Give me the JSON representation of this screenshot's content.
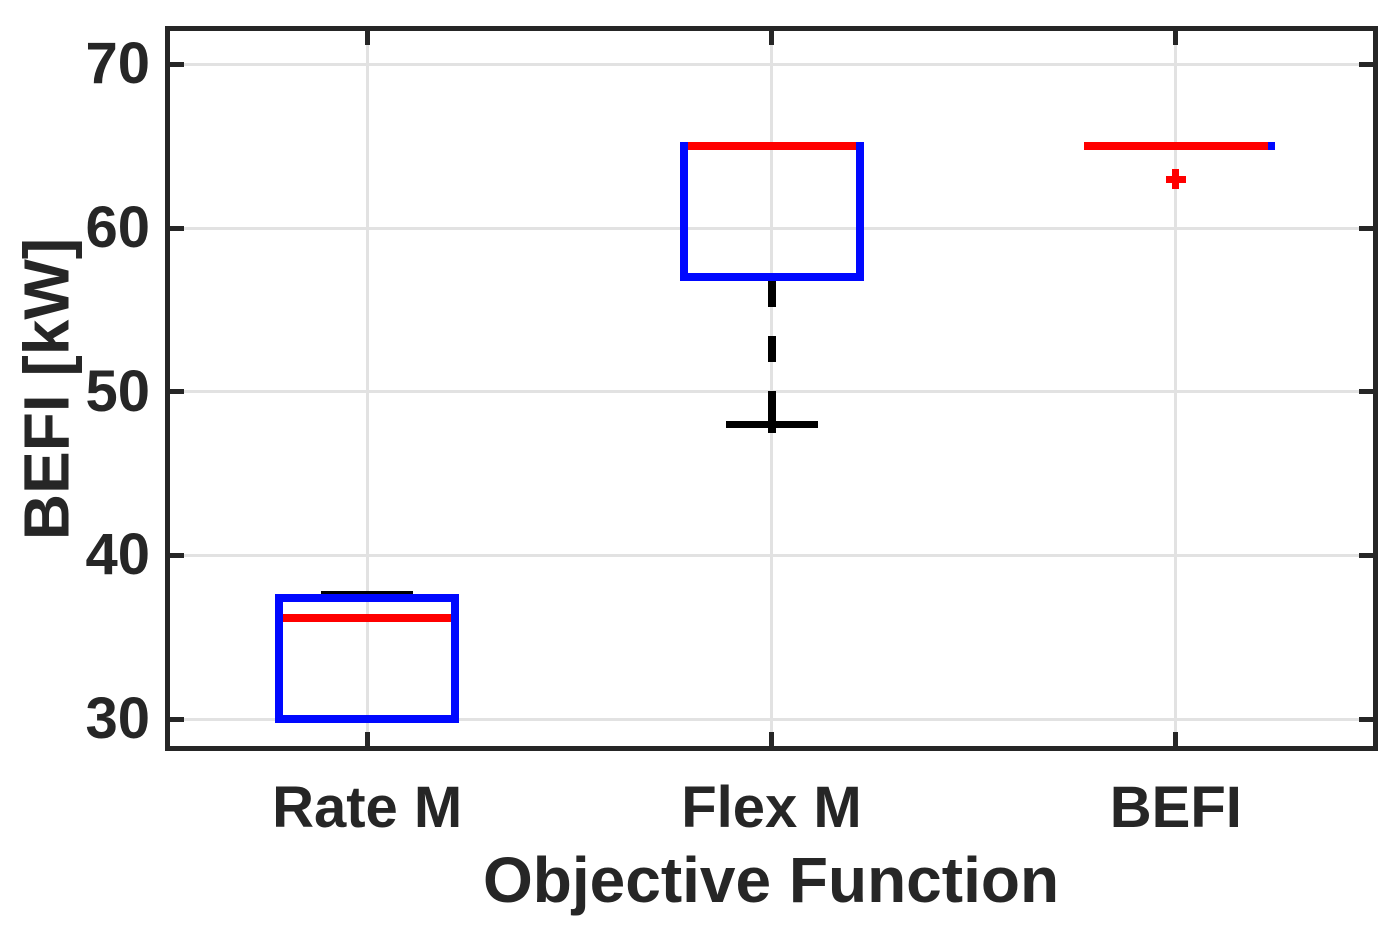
{
  "chart_data": {
    "type": "boxplot",
    "title": "",
    "xlabel": "Objective Function",
    "ylabel": "BEFI [kW]",
    "ylim": [
      28.05,
      72.35
    ],
    "yticks": [
      30,
      40,
      50,
      60,
      70
    ],
    "categories": [
      "Rate M",
      "Flex M",
      "BEFI"
    ],
    "grid": true,
    "legend": null,
    "boxes": [
      {
        "category": "Rate M",
        "q1": 30,
        "median": 36.2,
        "q3": 37.4,
        "whisker_low": 30,
        "whisker_high": 37.6,
        "outliers": []
      },
      {
        "category": "Flex M",
        "q1": 57,
        "median": 65,
        "q3": 65,
        "whisker_low": 48,
        "whisker_high": 65,
        "outliers": []
      },
      {
        "category": "BEFI",
        "q1": 65,
        "median": 65,
        "q3": 65,
        "whisker_low": 65,
        "whisker_high": 65,
        "outliers": [
          63
        ]
      }
    ],
    "colors": {
      "box": "#0008ff",
      "median": "#ff0000",
      "whisker": "#000000",
      "cap": "#000000",
      "outlier": "#ff0000",
      "axis": "#262626",
      "grid": "#e2e2e2",
      "background": "#ffffff"
    }
  }
}
